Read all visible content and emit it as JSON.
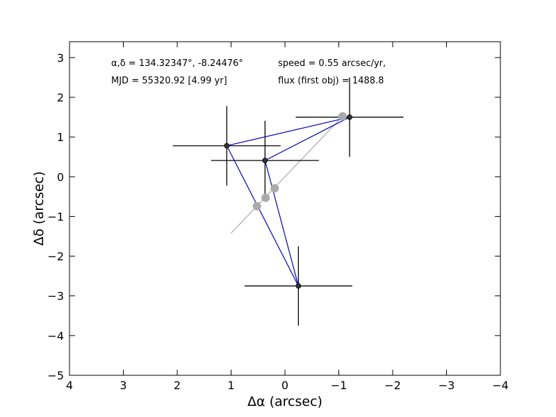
{
  "chart_data": {
    "type": "scatter",
    "xlabel": "Δα (arcsec)",
    "ylabel": "Δδ (arcsec)",
    "xlim": [
      4,
      -4
    ],
    "ylim": [
      -5,
      3.4
    ],
    "xticks": [
      4,
      3,
      2,
      1,
      0,
      -1,
      -2,
      -3,
      -4
    ],
    "yticks": [
      -5,
      -4,
      -3,
      -2,
      -1,
      0,
      1,
      2,
      3
    ],
    "grid": false,
    "annotations": [
      "α,δ = 134.32347°, -8.24476°",
      "MJD = 55320.92 [4.99 yr]",
      "speed = 0.55 arcsec/yr,",
      "flux (first obj) = 1488.8"
    ],
    "observations": [
      {
        "x": -1.2,
        "y": 1.5,
        "xerr": 1.0,
        "yerr": 1.0
      },
      {
        "x": 1.08,
        "y": 0.78,
        "xerr": 1.0,
        "yerr": 1.0
      },
      {
        "x": 0.37,
        "y": 0.41,
        "xerr": 1.0,
        "yerr": 1.0
      },
      {
        "x": -0.25,
        "y": -2.75,
        "xerr": 1.0,
        "yerr": 1.0
      }
    ],
    "model_points": [
      {
        "x": -1.07,
        "y": 1.52
      },
      {
        "x": 0.52,
        "y": -0.74
      },
      {
        "x": 0.36,
        "y": -0.53
      },
      {
        "x": 0.19,
        "y": -0.29
      }
    ],
    "model_line": [
      [
        1.0,
        -1.42
      ],
      [
        -1.07,
        1.52
      ]
    ],
    "connect_order": [
      0,
      1,
      3,
      2,
      0
    ],
    "colors": {
      "observation": "#333333",
      "errorbar": "#000000",
      "connector": "#0000bb",
      "model": "#aaaaaa"
    }
  }
}
